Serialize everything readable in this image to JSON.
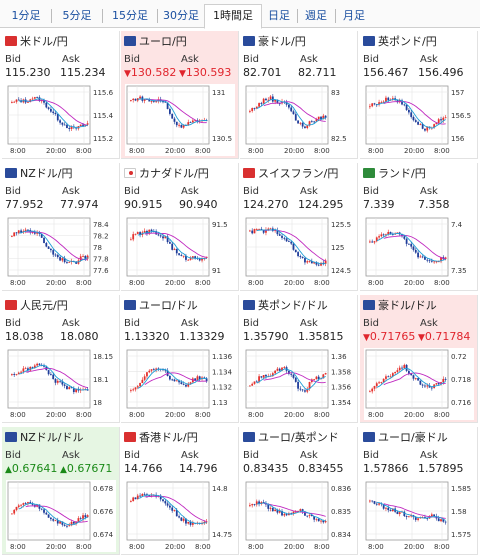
{
  "tabs": [
    "1分足",
    "5分足",
    "15分足",
    "30分足",
    "1時間足",
    "日足",
    "週足",
    "月足"
  ],
  "active_tab": 4,
  "labels": {
    "bid": "Bid",
    "ask": "Ask"
  },
  "colors": {
    "up_candle": "#e5312d",
    "down_candle": "#1f3d9a",
    "ma_short": "#1f9fd6",
    "ma_long": "#c02ac0",
    "down_bg": "#fde4e4",
    "up_bg": "#e6f6e3"
  },
  "panels": [
    {
      "name": "米ドル/円",
      "flag": "us",
      "bid": "115.230",
      "ask": "115.234",
      "trend": "none",
      "chart_data": {
        "type": "candlestick",
        "x_ticks": [
          "8:00",
          "20:00",
          "8:00"
        ],
        "y_ticks": [
          "115.6",
          "115.4",
          "115.2"
        ],
        "shape": [
          0.75,
          0.8,
          0.78,
          0.85,
          0.82,
          0.7,
          0.55,
          0.4,
          0.3,
          0.25,
          0.3,
          0.35
        ]
      }
    },
    {
      "name": "ユーロ/円",
      "flag": "eu",
      "bid": "130.582",
      "ask": "130.593",
      "trend": "down",
      "chart_data": {
        "type": "candlestick",
        "x_ticks": [
          "8:00",
          "20:00",
          "8:00"
        ],
        "y_ticks": [
          "131",
          "130.5"
        ],
        "shape": [
          0.8,
          0.85,
          0.82,
          0.78,
          0.8,
          0.75,
          0.45,
          0.3,
          0.35,
          0.4,
          0.38,
          0.42
        ]
      }
    },
    {
      "name": "豪ドル/円",
      "flag": "au",
      "bid": "82.701",
      "ask": "82.711",
      "trend": "none",
      "chart_data": {
        "type": "candlestick",
        "x_ticks": [
          "8:00",
          "20:00",
          "8:00"
        ],
        "y_ticks": [
          "83",
          "82.5"
        ],
        "shape": [
          0.6,
          0.7,
          0.8,
          0.85,
          0.75,
          0.8,
          0.6,
          0.35,
          0.3,
          0.4,
          0.45,
          0.5
        ]
      }
    },
    {
      "name": "英ポンド/円",
      "flag": "uk",
      "bid": "156.467",
      "ask": "156.496",
      "trend": "none",
      "chart_data": {
        "type": "candlestick",
        "x_ticks": [
          "8:00",
          "20:00",
          "8:00"
        ],
        "y_ticks": [
          "157",
          "156.5",
          "156"
        ],
        "shape": [
          0.7,
          0.75,
          0.8,
          0.85,
          0.8,
          0.7,
          0.5,
          0.35,
          0.25,
          0.3,
          0.4,
          0.45
        ]
      }
    },
    {
      "name": "NZドル/円",
      "flag": "nz",
      "bid": "77.952",
      "ask": "77.974",
      "trend": "none",
      "chart_data": {
        "type": "candlestick",
        "x_ticks": [
          "8:00",
          "20:00",
          "8:00"
        ],
        "y_ticks": [
          "78.4",
          "78.2",
          "78",
          "77.8",
          "77.6"
        ],
        "shape": [
          0.75,
          0.8,
          0.85,
          0.82,
          0.75,
          0.55,
          0.4,
          0.3,
          0.25,
          0.2,
          0.3,
          0.35
        ]
      }
    },
    {
      "name": "カナダドル/円",
      "flag": "ca",
      "bid": "90.915",
      "ask": "90.940",
      "trend": "none",
      "chart_data": {
        "type": "candlestick",
        "x_ticks": [
          "8:00",
          "20:00",
          "8:00"
        ],
        "y_ticks": [
          "91.5",
          "91"
        ],
        "shape": [
          0.7,
          0.78,
          0.8,
          0.82,
          0.75,
          0.7,
          0.5,
          0.35,
          0.3,
          0.32,
          0.3,
          0.35
        ]
      }
    },
    {
      "name": "スイスフラン/円",
      "flag": "ch",
      "bid": "124.270",
      "ask": "124.295",
      "trend": "none",
      "chart_data": {
        "type": "candlestick",
        "x_ticks": [
          "8:00",
          "20:00",
          "8:00"
        ],
        "y_ticks": [
          "125.5",
          "125",
          "124.5"
        ],
        "shape": [
          0.8,
          0.85,
          0.82,
          0.85,
          0.8,
          0.7,
          0.55,
          0.35,
          0.25,
          0.2,
          0.2,
          0.22
        ]
      }
    },
    {
      "name": "ランド/円",
      "flag": "za",
      "bid": "7.339",
      "ask": "7.358",
      "trend": "none",
      "chart_data": {
        "type": "candlestick",
        "x_ticks": [
          "8:00",
          "20:00",
          "8:00"
        ],
        "y_ticks": [
          "7.4",
          "7.35"
        ],
        "shape": [
          0.6,
          0.7,
          0.75,
          0.8,
          0.78,
          0.65,
          0.5,
          0.35,
          0.3,
          0.25,
          0.28,
          0.3
        ]
      }
    },
    {
      "name": "人民元/円",
      "flag": "cn",
      "bid": "18.038",
      "ask": "18.080",
      "trend": "none",
      "chart_data": {
        "type": "candlestick",
        "x_ticks": [
          "8:00",
          "20:00",
          "8:00"
        ],
        "y_ticks": [
          "18.15",
          "18.1",
          "18"
        ],
        "shape": [
          0.6,
          0.65,
          0.7,
          0.75,
          0.8,
          0.7,
          0.5,
          0.45,
          0.35,
          0.3,
          0.35,
          0.3
        ]
      }
    },
    {
      "name": "ユーロ/ドル",
      "flag": "eu",
      "bid": "1.13320",
      "ask": "1.13329",
      "trend": "none",
      "chart_data": {
        "type": "candlestick",
        "x_ticks": [
          "8:00",
          "20:00",
          "8:00"
        ],
        "y_ticks": [
          "1.136",
          "1.134",
          "1.132",
          "1.13"
        ],
        "shape": [
          0.3,
          0.4,
          0.6,
          0.7,
          0.75,
          0.65,
          0.5,
          0.45,
          0.4,
          0.5,
          0.55,
          0.5
        ]
      }
    },
    {
      "name": "英ポンド/ドル",
      "flag": "uk",
      "bid": "1.35790",
      "ask": "1.35815",
      "trend": "none",
      "chart_data": {
        "type": "candlestick",
        "x_ticks": [
          "8:00",
          "20:00",
          "8:00"
        ],
        "y_ticks": [
          "1.36",
          "1.358",
          "1.356",
          "1.354"
        ],
        "shape": [
          0.4,
          0.5,
          0.6,
          0.55,
          0.7,
          0.75,
          0.6,
          0.35,
          0.3,
          0.5,
          0.55,
          0.6
        ]
      }
    },
    {
      "name": "豪ドル/ドル",
      "flag": "au",
      "bid": "0.71765",
      "ask": "0.71784",
      "trend": "down",
      "chart_data": {
        "type": "candlestick",
        "x_ticks": [
          "8:00",
          "20:00",
          "8:00"
        ],
        "y_ticks": [
          "0.72",
          "0.718",
          "0.716"
        ],
        "shape": [
          0.3,
          0.4,
          0.5,
          0.6,
          0.7,
          0.75,
          0.6,
          0.45,
          0.4,
          0.35,
          0.45,
          0.5
        ]
      }
    },
    {
      "name": "NZドル/ドル",
      "flag": "nz",
      "bid": "0.67641",
      "ask": "0.67671",
      "trend": "up",
      "chart_data": {
        "type": "candlestick",
        "x_ticks": [
          "8:00",
          "20:00",
          "8:00"
        ],
        "y_ticks": [
          "0.678",
          "0.676",
          "0.674"
        ],
        "shape": [
          0.5,
          0.6,
          0.7,
          0.65,
          0.6,
          0.45,
          0.35,
          0.3,
          0.25,
          0.3,
          0.4,
          0.45
        ]
      }
    },
    {
      "name": "香港ドル/円",
      "flag": "hk",
      "bid": "14.766",
      "ask": "14.796",
      "trend": "none",
      "chart_data": {
        "type": "candlestick",
        "x_ticks": [
          "8:00",
          "20:00",
          "8:00"
        ],
        "y_ticks": [
          "14.8",
          "14.75"
        ],
        "shape": [
          0.75,
          0.8,
          0.85,
          0.82,
          0.8,
          0.7,
          0.55,
          0.4,
          0.3,
          0.25,
          0.3,
          0.35
        ]
      }
    },
    {
      "name": "ユーロ/英ポンド",
      "flag": "eu",
      "bid": "0.83435",
      "ask": "0.83455",
      "trend": "none",
      "chart_data": {
        "type": "candlestick",
        "x_ticks": [
          "8:00",
          "20:00",
          "8:00"
        ],
        "y_ticks": [
          "0.836",
          "0.835",
          "0.834"
        ],
        "shape": [
          0.6,
          0.7,
          0.65,
          0.55,
          0.5,
          0.45,
          0.5,
          0.55,
          0.45,
          0.4,
          0.35,
          0.3
        ]
      }
    },
    {
      "name": "ユーロ/豪ドル",
      "flag": "eu",
      "bid": "1.57866",
      "ask": "1.57895",
      "trend": "none",
      "chart_data": {
        "type": "candlestick",
        "x_ticks": [
          "8:00",
          "20:00",
          "8:00"
        ],
        "y_ticks": [
          "1.585",
          "1.58",
          "1.575"
        ],
        "shape": [
          0.7,
          0.65,
          0.6,
          0.55,
          0.5,
          0.45,
          0.4,
          0.35,
          0.4,
          0.45,
          0.35,
          0.3
        ]
      }
    }
  ]
}
